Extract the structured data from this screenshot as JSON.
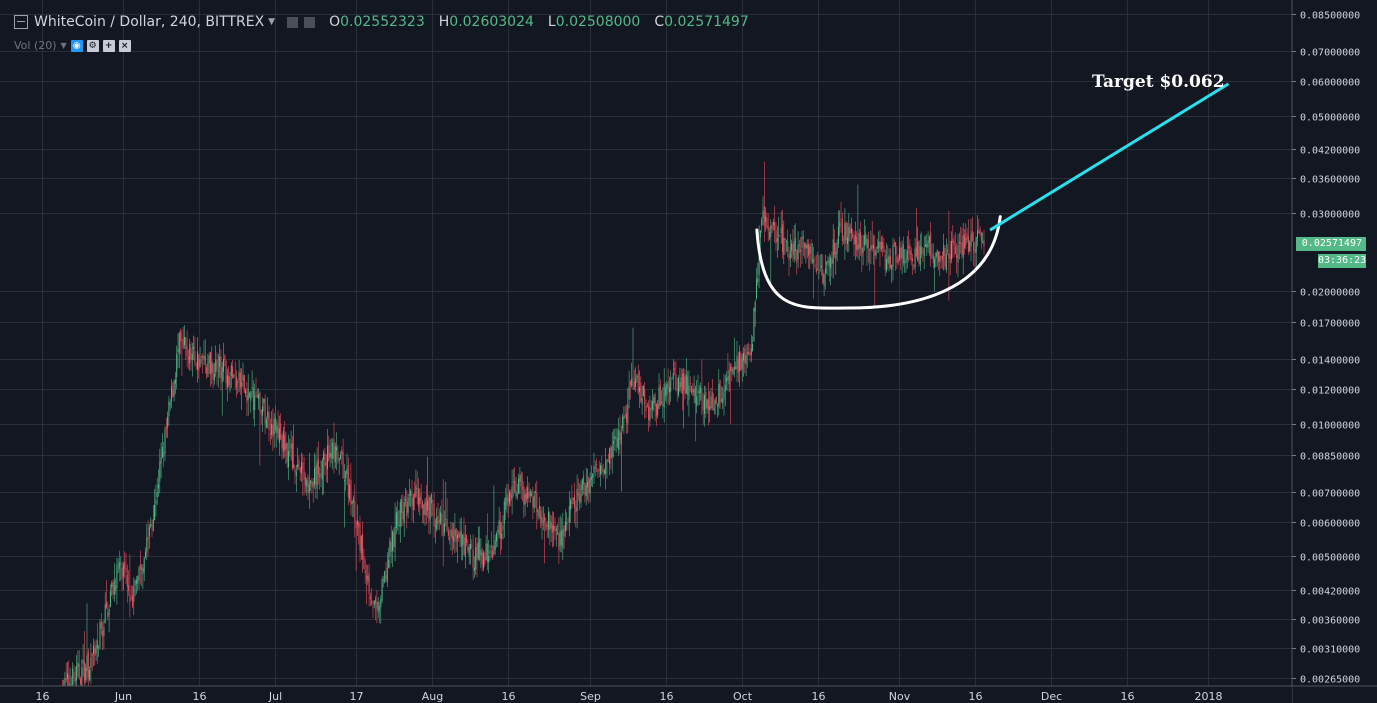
{
  "header": {
    "symbol": "WhiteCoin / Dollar, 240, BITTREX",
    "ohlc": [
      {
        "k": "O",
        "v": "0.02552323"
      },
      {
        "k": "H",
        "v": "0.02603024"
      },
      {
        "k": "L",
        "v": "0.02508000"
      },
      {
        "k": "C",
        "v": "0.02571497"
      }
    ],
    "indicator": "Vol (20)"
  },
  "price_tag": "0.02571497",
  "countdown": "03:36:23",
  "annotation": "Target $0.062",
  "colors": {
    "background": "#131722",
    "up": "#53b987",
    "down": "#eb4d5c",
    "grid": "#2a2e39",
    "target_line": "#29e0ef",
    "cup_line": "#ffffff"
  },
  "chart_data": {
    "type": "candlestick",
    "title": "",
    "price_axis": {
      "scale": "log",
      "range": [
        0.0025,
        0.086
      ],
      "ticks": [
        "0.08500000",
        "0.07000000",
        "0.06000000",
        "0.05000000",
        "0.04200000",
        "0.03600000",
        "0.03000000",
        "0.02000000",
        "0.01700000",
        "0.01400000",
        "0.01200000",
        "0.01000000",
        "0.00850000",
        "0.00700000",
        "0.00600000",
        "0.00500000",
        "0.00420000",
        "0.00360000",
        "0.00310000",
        "0.00265000"
      ]
    },
    "time_axis": {
      "ticks": [
        "16",
        "Jun",
        "16",
        "Jul",
        "17",
        "Aug",
        "16",
        "Sep",
        "16",
        "Oct",
        "16",
        "Nov",
        "16",
        "Dec",
        "16",
        "2018"
      ]
    },
    "grid": true,
    "close_path": [
      [
        "May 20",
        0.0025
      ],
      [
        "May 26",
        0.0029
      ],
      [
        "May 31",
        0.0047
      ],
      [
        "Jun 3",
        0.0041
      ],
      [
        "Jun 6",
        0.0056
      ],
      [
        "Jun 9",
        0.0088
      ],
      [
        "Jun 12",
        0.015
      ],
      [
        "Jun 16",
        0.014
      ],
      [
        "Jun 22",
        0.013
      ],
      [
        "Jun 28",
        0.011
      ],
      [
        "Jul 3",
        0.0089
      ],
      [
        "Jul 8",
        0.0072
      ],
      [
        "Jul 12",
        0.0088
      ],
      [
        "Jul 15",
        0.0076
      ],
      [
        "Jul 18",
        0.0052
      ],
      [
        "Jul 21",
        0.0036
      ],
      [
        "Jul 25",
        0.0061
      ],
      [
        "Jul 29",
        0.0069
      ],
      [
        "Aug 4",
        0.0057
      ],
      [
        "Aug 9",
        0.005
      ],
      [
        "Aug 13",
        0.0052
      ],
      [
        "Aug 17",
        0.0074
      ],
      [
        "Aug 22",
        0.0064
      ],
      [
        "Aug 26",
        0.0055
      ],
      [
        "Aug 30",
        0.0069
      ],
      [
        "Sep 3",
        0.0081
      ],
      [
        "Sep 7",
        0.0094
      ],
      [
        "Sep 10",
        0.013
      ],
      [
        "Sep 13",
        0.0105
      ],
      [
        "Sep 17",
        0.0125
      ],
      [
        "Sep 21",
        0.012
      ],
      [
        "Sep 25",
        0.011
      ],
      [
        "Sep 29",
        0.013
      ],
      [
        "Oct 3",
        0.0155
      ],
      [
        "Oct 5",
        0.029
      ],
      [
        "Oct 8",
        0.027
      ],
      [
        "Oct 11",
        0.0245
      ],
      [
        "Oct 14",
        0.0255
      ],
      [
        "Oct 17",
        0.022
      ],
      [
        "Oct 21",
        0.028
      ],
      [
        "Oct 25",
        0.025
      ],
      [
        "Oct 29",
        0.024
      ],
      [
        "Nov 2",
        0.0235
      ],
      [
        "Nov 6",
        0.025
      ],
      [
        "Nov 10",
        0.0242
      ],
      [
        "Nov 14",
        0.026
      ],
      [
        "Nov 18",
        0.02571
      ]
    ],
    "annotations": [
      {
        "kind": "cup-arc",
        "from": [
          "Oct 4",
          0.0275
        ],
        "bottom": [
          "Oct 22",
          0.0183
        ],
        "to": [
          "Nov 21",
          0.0295
        ]
      },
      {
        "kind": "trend-line",
        "from": [
          "Nov 19",
          0.0275
        ],
        "to": [
          "Jan 5",
          0.059
        ],
        "label": "Target $0.062"
      }
    ]
  }
}
